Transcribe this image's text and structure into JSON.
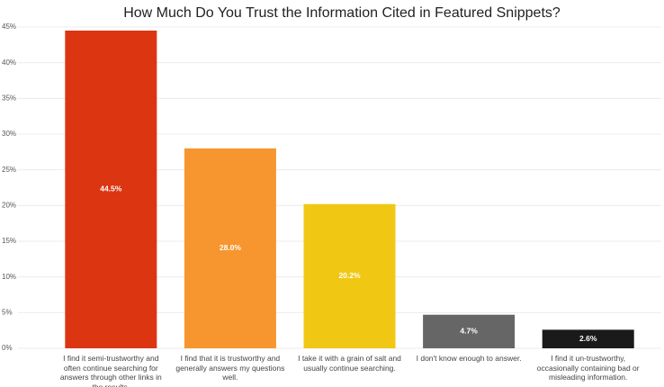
{
  "chart_data": {
    "type": "bar",
    "title": "How Much Do You Trust the Information Cited in Featured Snippets?",
    "categories": [
      "I find it semi-trustworthy and often continue searching for answers through other links in the results.",
      "I find that it is trustworthy and generally answers my questions well.",
      "I take it with a grain of salt and usually continue searching.",
      "I don't know enough to answer.",
      "I find it un-trustworthy, occasionally containing bad or misleading information."
    ],
    "values": [
      44.5,
      28.0,
      20.2,
      4.7,
      2.6
    ],
    "value_labels": [
      "44.5%",
      "28.0%",
      "20.2%",
      "4.7%",
      "2.6%"
    ],
    "colors": [
      "#dc3512",
      "#f7962f",
      "#f0c814",
      "#666666",
      "#1a1a1a"
    ],
    "ylim": [
      0,
      45
    ],
    "yticks": [
      {
        "value": 0,
        "label": "0%"
      },
      {
        "value": 5,
        "label": "5%"
      },
      {
        "value": 10,
        "label": "10%"
      },
      {
        "value": 15,
        "label": "15%"
      },
      {
        "value": 20,
        "label": "20%"
      },
      {
        "value": 25,
        "label": "25%"
      },
      {
        "value": 30,
        "label": "30%"
      },
      {
        "value": 35,
        "label": "35%"
      },
      {
        "value": 40,
        "label": "40%"
      },
      {
        "value": 45,
        "label": "45%"
      }
    ],
    "grid": true
  }
}
